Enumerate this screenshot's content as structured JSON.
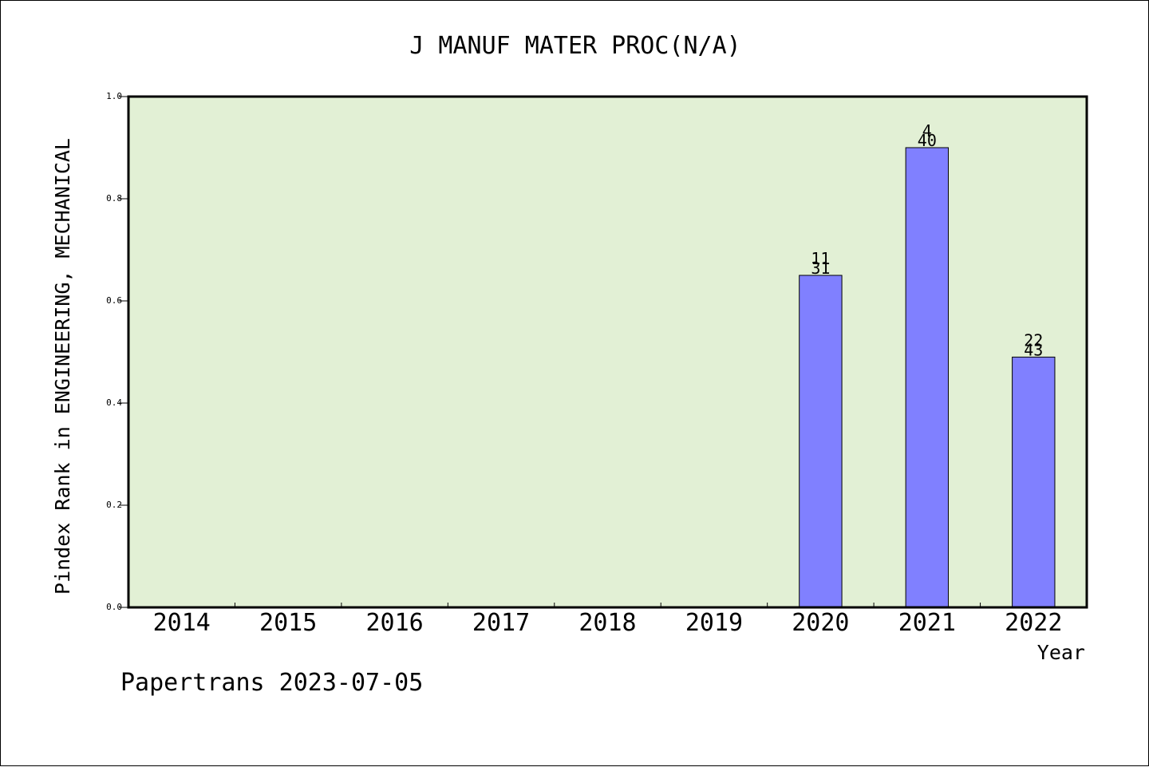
{
  "chart_data": {
    "type": "bar",
    "title": "J MANUF MATER PROC(N/A)",
    "xlabel": "Year",
    "ylabel": "Pindex Rank in ENGINEERING, MECHANICAL",
    "ylim": [
      0,
      1.0
    ],
    "yticks": [
      "0.0",
      "0.2",
      "0.4",
      "0.6",
      "0.8",
      "1.0"
    ],
    "categories": [
      "2014",
      "2015",
      "2016",
      "2017",
      "2018",
      "2019",
      "2020",
      "2021",
      "2022"
    ],
    "values": [
      null,
      null,
      null,
      null,
      null,
      null,
      0.65,
      0.9,
      0.49
    ],
    "label_top": [
      "",
      "",
      "",
      "",
      "",
      "",
      "11",
      "4",
      "22"
    ],
    "label_bottom": [
      "",
      "",
      "",
      "",
      "",
      "",
      "31",
      "40",
      "43"
    ],
    "grid": false,
    "colors": {
      "plot_bg": "#e2f0d5",
      "bar": "#8080ff",
      "axis": "#000000"
    }
  },
  "footer": "Papertrans 2023-07-05"
}
